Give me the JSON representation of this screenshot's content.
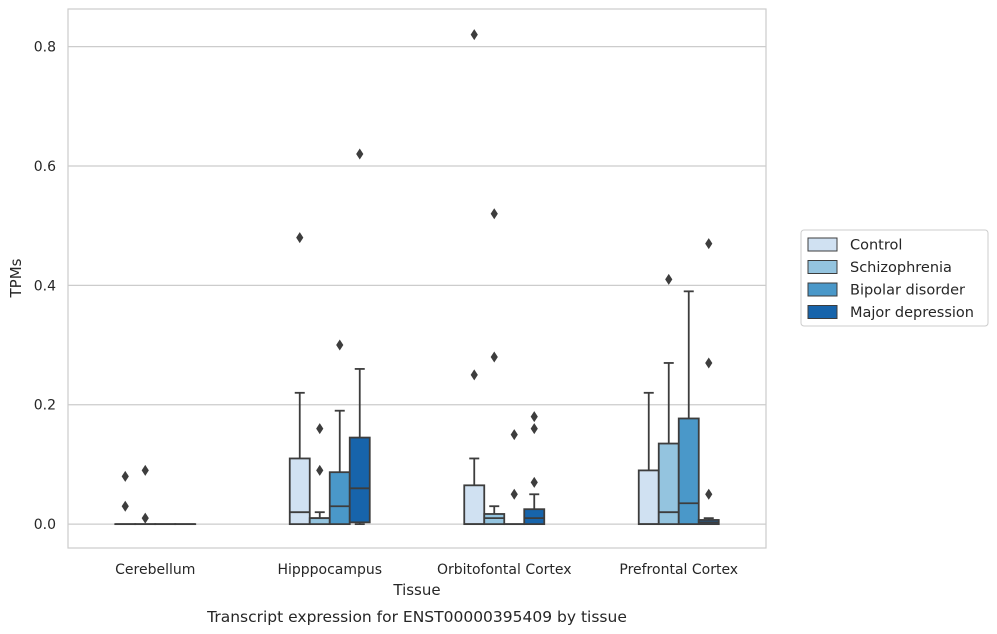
{
  "chart_data": {
    "type": "box",
    "caption": "Transcript expression for ENST00000395409 by tissue",
    "xlabel": "Tissue",
    "ylabel": "TPMs",
    "ylim": [
      -0.04,
      0.863
    ],
    "yticks": [
      0.0,
      0.2,
      0.4,
      0.6,
      0.8
    ],
    "ytick_labels": [
      "0.0",
      "0.2",
      "0.4",
      "0.6",
      "0.8"
    ],
    "grid": true,
    "legend_position": "right",
    "categories": [
      "Cerebellum",
      "Hipppocampus",
      "Orbitofontal Cortex",
      "Prefrontal Cortex"
    ],
    "series": [
      {
        "name": "Control",
        "color": "#d0e1f2",
        "boxes": [
          {
            "q1": 0,
            "median": 0,
            "q3": 0,
            "whisker_low": 0,
            "whisker_high": 0,
            "outliers": [
              0.08,
              0.03
            ]
          },
          {
            "q1": 0,
            "median": 0.02,
            "q3": 0.11,
            "whisker_low": 0,
            "whisker_high": 0.22,
            "outliers": [
              0.48
            ]
          },
          {
            "q1": 0,
            "median": 0,
            "q3": 0.065,
            "whisker_low": 0,
            "whisker_high": 0.11,
            "outliers": [
              0.82,
              0.25
            ]
          },
          {
            "q1": 0,
            "median": 0,
            "q3": 0.09,
            "whisker_low": 0,
            "whisker_high": 0.22,
            "outliers": []
          }
        ]
      },
      {
        "name": "Schizophrenia",
        "color": "#94c4df",
        "boxes": [
          {
            "q1": 0,
            "median": 0,
            "q3": 0,
            "whisker_low": 0,
            "whisker_high": 0,
            "outliers": [
              0.09,
              0.01
            ]
          },
          {
            "q1": 0,
            "median": 0.01,
            "q3": 0.01,
            "whisker_low": 0,
            "whisker_high": 0.02,
            "outliers": [
              0.16,
              0.09
            ]
          },
          {
            "q1": 0,
            "median": 0.01,
            "q3": 0.017,
            "whisker_low": 0,
            "whisker_high": 0.03,
            "outliers": [
              0.52,
              0.28
            ]
          },
          {
            "q1": 0,
            "median": 0.02,
            "q3": 0.135,
            "whisker_low": 0,
            "whisker_high": 0.27,
            "outliers": [
              0.41
            ]
          }
        ]
      },
      {
        "name": "Bipolar disorder",
        "color": "#4a98c9",
        "boxes": [
          {
            "q1": 0,
            "median": 0,
            "q3": 0,
            "whisker_low": 0,
            "whisker_high": 0,
            "outliers": []
          },
          {
            "q1": 0,
            "median": 0.03,
            "q3": 0.087,
            "whisker_low": 0,
            "whisker_high": 0.19,
            "outliers": [
              0.3
            ]
          },
          {
            "q1": 0,
            "median": 0,
            "q3": 0,
            "whisker_low": 0,
            "whisker_high": 0,
            "outliers": [
              0.15,
              0.05
            ]
          },
          {
            "q1": 0,
            "median": 0.035,
            "q3": 0.177,
            "whisker_low": 0,
            "whisker_high": 0.39,
            "outliers": []
          }
        ]
      },
      {
        "name": "Major depression",
        "color": "#1764ab",
        "boxes": [
          {
            "q1": 0,
            "median": 0,
            "q3": 0,
            "whisker_low": 0,
            "whisker_high": 0,
            "outliers": []
          },
          {
            "q1": 0.003,
            "median": 0.06,
            "q3": 0.145,
            "whisker_low": 0,
            "whisker_high": 0.26,
            "outliers": [
              0.62
            ]
          },
          {
            "q1": 0,
            "median": 0.01,
            "q3": 0.025,
            "whisker_low": 0,
            "whisker_high": 0.05,
            "outliers": [
              0.18,
              0.16,
              0.07
            ]
          },
          {
            "q1": 0,
            "median": 0.003,
            "q3": 0.007,
            "whisker_low": 0,
            "whisker_high": 0.01,
            "outliers": [
              0.47,
              0.27,
              0.05
            ]
          }
        ]
      }
    ]
  }
}
